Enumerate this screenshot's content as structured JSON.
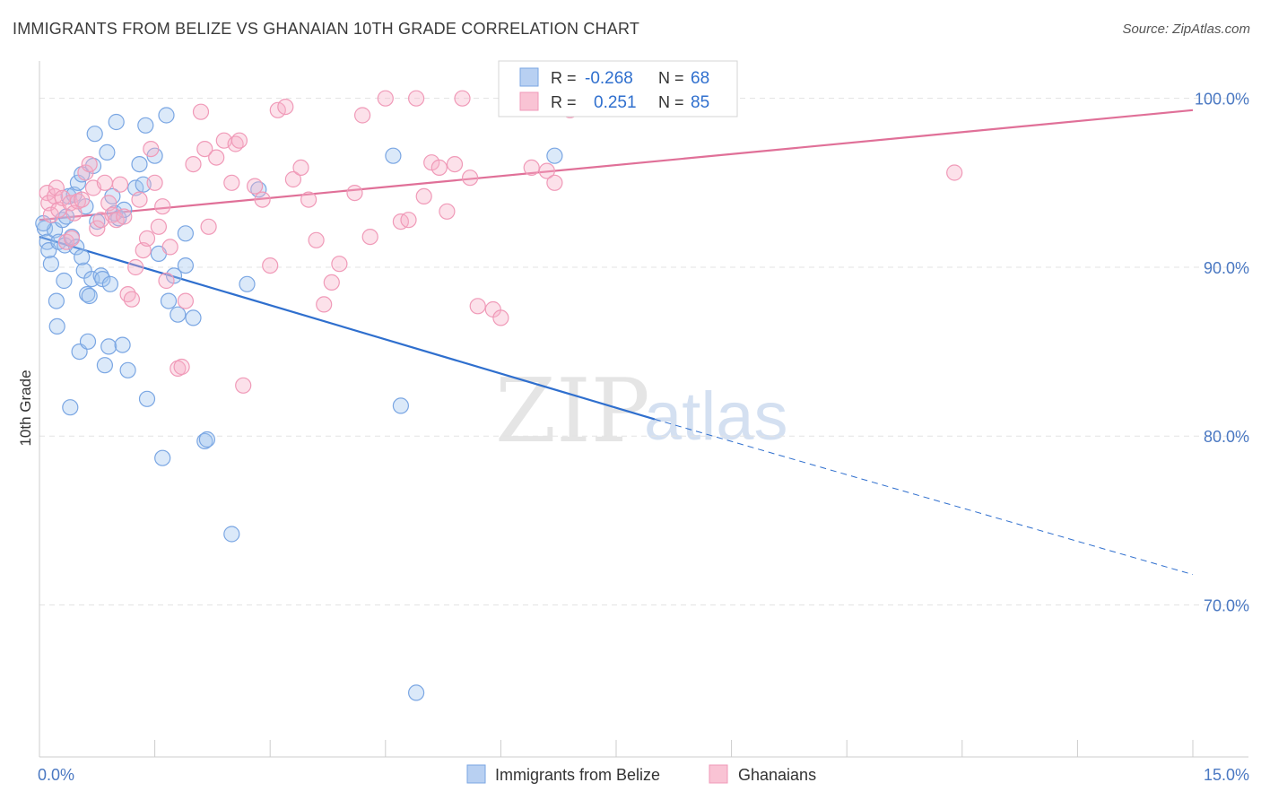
{
  "header": {
    "title": "IMMIGRANTS FROM BELIZE VS GHANAIAN 10TH GRADE CORRELATION CHART",
    "source": "Source: ZipAtlas.com"
  },
  "watermark": {
    "zip": "ZIP",
    "atlas": "atlas"
  },
  "legend_box": {
    "rows": [
      {
        "r_label": "R =",
        "r_value": "-0.268",
        "n_label": "N =",
        "n_value": "68"
      },
      {
        "r_label": "R =",
        "r_value": "0.251",
        "n_label": "N =",
        "n_value": "85"
      }
    ]
  },
  "chart_data": {
    "type": "scatter",
    "title": "IMMIGRANTS FROM BELIZE VS GHANAIAN 10TH GRADE CORRELATION CHART",
    "xlabel": "",
    "ylabel": "10th Grade",
    "xlim": [
      0,
      15
    ],
    "ylim": [
      61,
      102
    ],
    "x_tick_labels": [
      "0.0%",
      "15.0%"
    ],
    "x_tick_values": [
      0,
      15
    ],
    "y_ticks": [
      {
        "value": 100,
        "label": "100.0%"
      },
      {
        "value": 90,
        "label": "90.0%"
      },
      {
        "value": 80,
        "label": "80.0%"
      },
      {
        "value": 70,
        "label": "70.0%"
      }
    ],
    "grid": true,
    "legend_position": "bottom",
    "colors": {
      "belize": "#7aa6e3",
      "belize_line": "#2f6fce",
      "ghana": "#f09ab8",
      "ghana_line": "#e07098"
    },
    "series": [
      {
        "name": "Immigrants from Belize",
        "key": "belize",
        "R": -0.268,
        "N": 68,
        "trend": {
          "x0": 0.0,
          "y0": 91.8,
          "x1": 8.0,
          "y1": 81.0,
          "dash_x1": 15.0,
          "dash_y1": 71.8
        },
        "points": [
          [
            0.07,
            92.3
          ],
          [
            0.1,
            91.5
          ],
          [
            0.12,
            91.0
          ],
          [
            0.15,
            90.2
          ],
          [
            0.2,
            92.2
          ],
          [
            0.22,
            88.0
          ],
          [
            0.23,
            86.5
          ],
          [
            0.25,
            91.5
          ],
          [
            0.3,
            92.8
          ],
          [
            0.33,
            91.3
          ],
          [
            0.35,
            93.0
          ],
          [
            0.32,
            89.2
          ],
          [
            0.38,
            94.2
          ],
          [
            0.42,
            91.8
          ],
          [
            0.45,
            94.3
          ],
          [
            0.48,
            91.2
          ],
          [
            0.5,
            95.0
          ],
          [
            0.52,
            85.0
          ],
          [
            0.55,
            95.5
          ],
          [
            0.58,
            89.8
          ],
          [
            0.6,
            93.6
          ],
          [
            0.62,
            88.4
          ],
          [
            0.65,
            88.3
          ],
          [
            0.68,
            89.3
          ],
          [
            0.7,
            96.0
          ],
          [
            0.72,
            97.9
          ],
          [
            0.75,
            92.7
          ],
          [
            0.8,
            89.5
          ],
          [
            0.82,
            89.3
          ],
          [
            0.85,
            84.2
          ],
          [
            0.88,
            96.8
          ],
          [
            0.9,
            85.3
          ],
          [
            0.92,
            89.0
          ],
          [
            0.95,
            94.2
          ],
          [
            0.98,
            93.2
          ],
          [
            1.0,
            98.6
          ],
          [
            1.03,
            92.9
          ],
          [
            1.08,
            85.4
          ],
          [
            1.1,
            93.4
          ],
          [
            1.15,
            83.9
          ],
          [
            1.25,
            94.7
          ],
          [
            1.3,
            96.1
          ],
          [
            1.35,
            94.9
          ],
          [
            1.38,
            98.4
          ],
          [
            1.4,
            82.2
          ],
          [
            1.5,
            96.6
          ],
          [
            1.55,
            90.8
          ],
          [
            1.6,
            78.7
          ],
          [
            1.65,
            99.0
          ],
          [
            1.68,
            88.0
          ],
          [
            1.75,
            89.5
          ],
          [
            1.8,
            87.2
          ],
          [
            1.9,
            92.0
          ],
          [
            1.9,
            90.1
          ],
          [
            2.0,
            87.0
          ],
          [
            2.15,
            79.7
          ],
          [
            2.18,
            79.8
          ],
          [
            2.5,
            74.2
          ],
          [
            2.7,
            89.0
          ],
          [
            2.85,
            94.6
          ],
          [
            4.6,
            96.6
          ],
          [
            4.7,
            81.8
          ],
          [
            4.9,
            64.8
          ],
          [
            6.7,
            96.6
          ],
          [
            0.05,
            92.6
          ],
          [
            0.4,
            81.7
          ],
          [
            0.63,
            85.6
          ],
          [
            0.55,
            90.6
          ]
        ]
      },
      {
        "name": "Ghanaians",
        "key": "ghana",
        "R": 0.251,
        "N": 85,
        "trend": {
          "x0": 0.0,
          "y0": 92.8,
          "x1": 15.0,
          "y1": 99.3
        },
        "points": [
          [
            0.1,
            94.4
          ],
          [
            0.12,
            93.8
          ],
          [
            0.15,
            93.1
          ],
          [
            0.2,
            94.2
          ],
          [
            0.22,
            94.7
          ],
          [
            0.25,
            93.4
          ],
          [
            0.3,
            94.1
          ],
          [
            0.35,
            91.5
          ],
          [
            0.4,
            93.8
          ],
          [
            0.42,
            91.7
          ],
          [
            0.45,
            93.2
          ],
          [
            0.5,
            93.9
          ],
          [
            0.55,
            94.0
          ],
          [
            0.6,
            95.6
          ],
          [
            0.65,
            96.1
          ],
          [
            0.7,
            94.7
          ],
          [
            0.75,
            92.3
          ],
          [
            0.8,
            92.8
          ],
          [
            0.85,
            95.0
          ],
          [
            0.9,
            93.8
          ],
          [
            0.95,
            93.1
          ],
          [
            1.0,
            92.8
          ],
          [
            1.05,
            94.9
          ],
          [
            1.1,
            93.0
          ],
          [
            1.15,
            88.4
          ],
          [
            1.2,
            88.1
          ],
          [
            1.25,
            90.0
          ],
          [
            1.3,
            94.0
          ],
          [
            1.35,
            91.0
          ],
          [
            1.4,
            91.7
          ],
          [
            1.45,
            97.0
          ],
          [
            1.5,
            95.0
          ],
          [
            1.55,
            92.4
          ],
          [
            1.6,
            93.6
          ],
          [
            1.65,
            89.2
          ],
          [
            1.7,
            91.2
          ],
          [
            1.8,
            84.0
          ],
          [
            1.85,
            84.1
          ],
          [
            1.9,
            88.0
          ],
          [
            2.0,
            96.1
          ],
          [
            2.1,
            99.2
          ],
          [
            2.15,
            97.0
          ],
          [
            2.2,
            92.4
          ],
          [
            2.3,
            96.5
          ],
          [
            2.4,
            97.5
          ],
          [
            2.5,
            95.0
          ],
          [
            2.55,
            97.3
          ],
          [
            2.6,
            97.5
          ],
          [
            2.65,
            83.0
          ],
          [
            2.8,
            94.8
          ],
          [
            2.9,
            94.0
          ],
          [
            3.0,
            90.1
          ],
          [
            3.1,
            99.3
          ],
          [
            3.2,
            99.5
          ],
          [
            3.3,
            95.2
          ],
          [
            3.4,
            95.9
          ],
          [
            3.5,
            94.0
          ],
          [
            3.6,
            91.6
          ],
          [
            3.7,
            87.8
          ],
          [
            3.8,
            89.1
          ],
          [
            3.9,
            90.2
          ],
          [
            4.1,
            94.4
          ],
          [
            4.2,
            99.0
          ],
          [
            4.3,
            91.8
          ],
          [
            4.5,
            100.0
          ],
          [
            4.7,
            92.7
          ],
          [
            4.8,
            92.8
          ],
          [
            4.9,
            100.0
          ],
          [
            5.0,
            94.2
          ],
          [
            5.1,
            96.2
          ],
          [
            5.2,
            95.9
          ],
          [
            5.3,
            93.3
          ],
          [
            5.4,
            96.1
          ],
          [
            5.5,
            100.0
          ],
          [
            5.6,
            95.3
          ],
          [
            5.7,
            87.7
          ],
          [
            5.9,
            87.5
          ],
          [
            6.0,
            87.0
          ],
          [
            6.1,
            99.8
          ],
          [
            6.4,
            95.9
          ],
          [
            6.6,
            95.7
          ],
          [
            6.7,
            95.0
          ],
          [
            6.9,
            99.3
          ],
          [
            7.0,
            100.0
          ],
          [
            11.9,
            95.6
          ]
        ]
      }
    ]
  },
  "bottom_legend": {
    "items": [
      {
        "label": "Immigrants from Belize"
      },
      {
        "label": "Ghanaians"
      }
    ]
  }
}
